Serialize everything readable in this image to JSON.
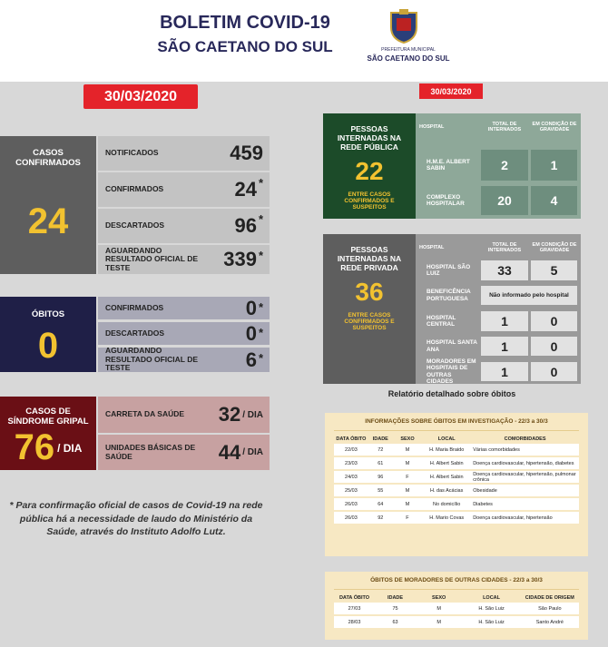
{
  "header": {
    "title": "BOLETIM COVID-19",
    "subtitle": "SÃO CAETANO DO SUL",
    "logo_line1": "PREFEITURA MUNICIPAL",
    "logo_line2": "SÃO CAETANO DO SUL"
  },
  "left_date": "30/03/2020",
  "right_date": "30/03/2020",
  "casos": {
    "label": "CASOS CONFIRMADOS",
    "total": 24,
    "rows": [
      {
        "label": "NOTIFICADOS",
        "value": 459
      },
      {
        "label": "CONFIRMADOS",
        "value": 24,
        "note": "*"
      },
      {
        "label": "DESCARTADOS",
        "value": 96,
        "note": "*"
      },
      {
        "label": "AGUARDANDO RESULTADO OFICIAL DE TESTE",
        "value": 339,
        "note": "*"
      }
    ]
  },
  "obitos": {
    "label": "ÓBITOS",
    "total": 0,
    "rows": [
      {
        "label": "CONFIRMADOS",
        "value": 0,
        "note": "*"
      },
      {
        "label": "DESCARTADOS",
        "value": 0,
        "note": "*"
      },
      {
        "label": "AGUARDANDO RESULTADO OFICIAL DE TESTE",
        "value": 6,
        "note": "*"
      }
    ]
  },
  "sindrome": {
    "label": "CASOS DE SÍNDROME GRIPAL",
    "total": 76,
    "unit": "/ DIA",
    "rows": [
      {
        "label": "CARRETA DA SAÚDE",
        "value": 32
      },
      {
        "label": "UNIDADES BÁSICAS DE SAÚDE",
        "value": 44
      }
    ]
  },
  "footnote": "* Para confirmação oficial de casos de Covid-19 na rede pública há a necessidade de laudo do Ministério da Saúde, através do Instituto Adolfo Lutz.",
  "publica": {
    "title": "PESSOAS INTERNADAS NA REDE PÚBLICA",
    "total": 22,
    "subtitle": "ENTRE CASOS CONFIRMADOS E SUSPEITOS",
    "headers": [
      "HOSPITAL",
      "TOTAL DE INTERNADOS",
      "EM CONDIÇÃO DE GRAVIDADE"
    ],
    "rows": [
      {
        "hospital": "H.M.E. ALBERT SABIN",
        "total": 2,
        "grave": 1
      },
      {
        "hospital": "COMPLEXO HOSPITALAR",
        "total": 20,
        "grave": 4
      }
    ]
  },
  "privada": {
    "title": "PESSOAS INTERNADAS NA REDE PRIVADA",
    "total": 36,
    "subtitle": "ENTRE CASOS CONFIRMADOS E SUSPEITOS",
    "headers": [
      "HOSPITAL",
      "TOTAL DE INTERNADOS",
      "EM CONDIÇÃO DE GRAVIDADE"
    ],
    "rows": [
      {
        "hospital": "HOSPITAL SÃO LUIZ",
        "total": 33,
        "grave": 5
      },
      {
        "hospital": "BENEFICÊNCIA PORTUGUESA",
        "info": "Não informado pelo hospital"
      },
      {
        "hospital": "HOSPITAL CENTRAL",
        "total": 1,
        "grave": 0
      },
      {
        "hospital": "HOSPITAL SANTA ANA",
        "total": 1,
        "grave": 0
      },
      {
        "hospital": "MORADORES EM HOSPITAIS DE OUTRAS CIDADES",
        "total": 1,
        "grave": 0
      }
    ]
  },
  "relatorio": "Relatório detalhado sobre óbitos",
  "investigacao": {
    "title": "INFORMAÇÕES SOBRE ÓBITOS EM INVESTIGAÇÃO - 22/3 a 30/3",
    "headers": [
      "DATA ÓBITO",
      "IDADE",
      "SEXO",
      "LOCAL",
      "COMORBIDADES"
    ],
    "rows": [
      [
        "22/03",
        72,
        "M",
        "H. Maria Braido",
        "Várias comorbidades"
      ],
      [
        "23/03",
        61,
        "M",
        "H. Albert Sabin",
        "Doença cardiovascular, hipertensão, diabetes"
      ],
      [
        "24/03",
        96,
        "F",
        "H. Albert Sabin",
        "Doença cardiovascular, hipertensão, pulmonar crônica"
      ],
      [
        "25/03",
        55,
        "M",
        "H. das Acácias",
        "Obesidade"
      ],
      [
        "26/03",
        64,
        "M",
        "No domicílio",
        "Diabetes"
      ],
      [
        "26/03",
        92,
        "F",
        "H. Mario Covas",
        "Doença cardiovascular, hipertensão"
      ]
    ]
  },
  "outras": {
    "title": "ÓBITOS DE MORADORES DE OUTRAS CIDADES - 22/3 a 30/3",
    "headers": [
      "DATA ÓBITO",
      "IDADE",
      "SEXO",
      "LOCAL",
      "CIDADE DE ORIGEM"
    ],
    "rows": [
      [
        "27/03",
        75,
        "M",
        "H. São Luiz",
        "São Paulo"
      ],
      [
        "28/03",
        63,
        "M",
        "H. São Luiz",
        "Santo André"
      ]
    ]
  }
}
